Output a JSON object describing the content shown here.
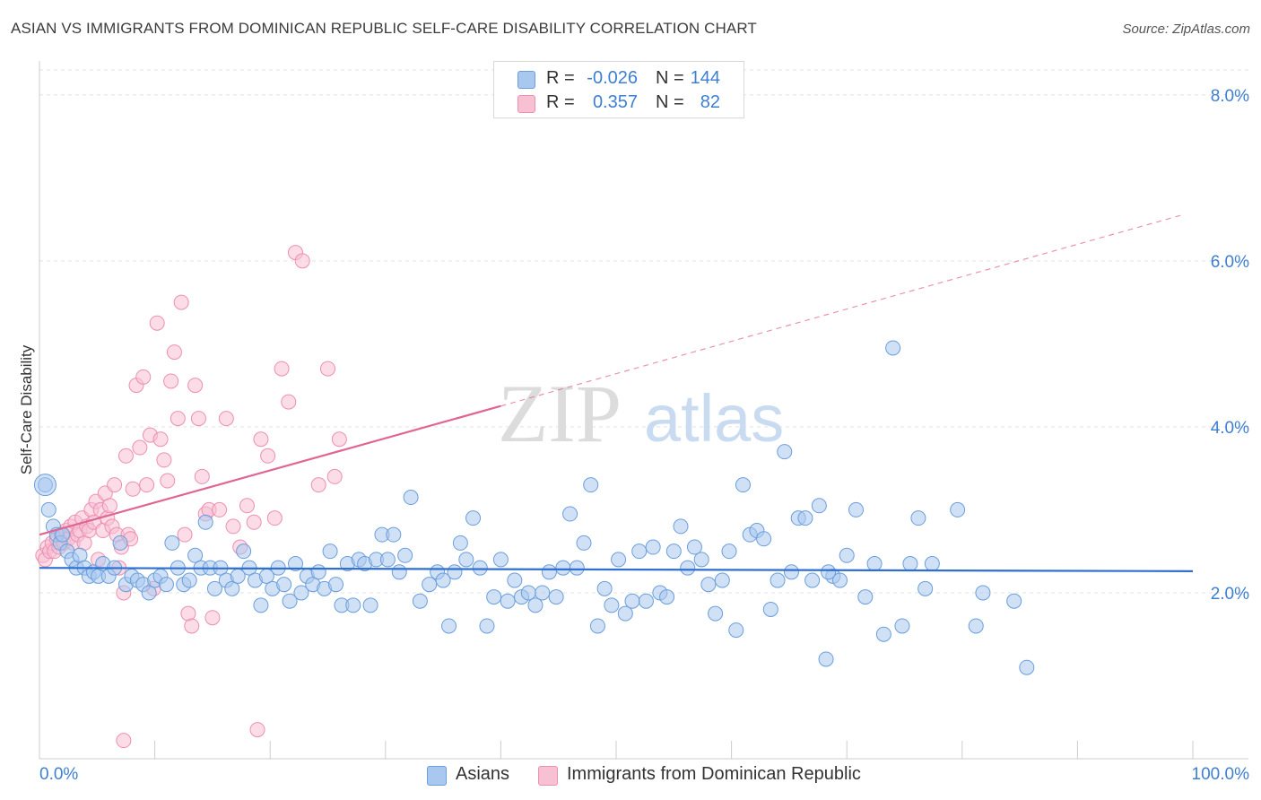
{
  "title": "ASIAN VS IMMIGRANTS FROM DOMINICAN REPUBLIC SELF-CARE DISABILITY CORRELATION CHART",
  "source": "Source: ZipAtlas.com",
  "watermark": {
    "zip": "ZIP",
    "atlas": "atlas"
  },
  "colors": {
    "blue_fill": "#a9c8ef",
    "blue_stroke": "#6b9edb",
    "blue_line": "#2e6fd0",
    "pink_fill": "#f7c0d3",
    "pink_stroke": "#ec8fb0",
    "pink_line": "#e06592",
    "axis_text": "#3d7fd1",
    "grid": "#e2e2e2"
  },
  "legend": {
    "rows": [
      {
        "r_label": "R =",
        "r_value": "-0.026",
        "n_label": "N =",
        "n_value": "144"
      },
      {
        "r_label": "R =",
        "r_value": "0.357",
        "n_label": "N =",
        "n_value": "82"
      }
    ]
  },
  "bottom_legend": {
    "asians": "Asians",
    "dominican": "Immigrants from Dominican Republic"
  },
  "chart_data": {
    "type": "scatter",
    "title": "ASIAN VS IMMIGRANTS FROM DOMINICAN REPUBLIC SELF-CARE DISABILITY CORRELATION CHART",
    "xlabel": "",
    "ylabel": "Self-Care Disability",
    "xlim": [
      0,
      100
    ],
    "ylim": [
      0,
      8.3
    ],
    "x_tick_labels": [
      "0.0%",
      "100.0%"
    ],
    "y_ticks": [
      2,
      4,
      6,
      8
    ],
    "y_tick_labels": [
      "2.0%",
      "4.0%",
      "6.0%",
      "8.0%"
    ],
    "grid": true,
    "legend_position": "top-center",
    "series": [
      {
        "name": "Asians",
        "r": -0.026,
        "n": 144,
        "trend": {
          "x": [
            0,
            100
          ],
          "y": [
            2.3,
            2.26
          ]
        },
        "points": [
          [
            0.5,
            3.3
          ],
          [
            0.8,
            3.0
          ],
          [
            1.2,
            2.8
          ],
          [
            1.5,
            2.7
          ],
          [
            1.8,
            2.6
          ],
          [
            2.0,
            2.7
          ],
          [
            2.4,
            2.5
          ],
          [
            2.8,
            2.4
          ],
          [
            3.2,
            2.3
          ],
          [
            3.5,
            2.45
          ],
          [
            3.9,
            2.3
          ],
          [
            4.3,
            2.2
          ],
          [
            4.7,
            2.25
          ],
          [
            5.1,
            2.2
          ],
          [
            5.5,
            2.35
          ],
          [
            6.0,
            2.2
          ],
          [
            6.5,
            2.3
          ],
          [
            7.0,
            2.6
          ],
          [
            7.5,
            2.1
          ],
          [
            8.0,
            2.2
          ],
          [
            8.5,
            2.15
          ],
          [
            9.0,
            2.1
          ],
          [
            9.5,
            2.0
          ],
          [
            10.0,
            2.15
          ],
          [
            10.5,
            2.2
          ],
          [
            11.0,
            2.1
          ],
          [
            11.5,
            2.6
          ],
          [
            12.0,
            2.3
          ],
          [
            12.5,
            2.1
          ],
          [
            13.0,
            2.15
          ],
          [
            13.5,
            2.45
          ],
          [
            14.0,
            2.3
          ],
          [
            14.4,
            2.85
          ],
          [
            14.8,
            2.3
          ],
          [
            15.2,
            2.05
          ],
          [
            15.7,
            2.3
          ],
          [
            16.2,
            2.15
          ],
          [
            16.7,
            2.05
          ],
          [
            17.2,
            2.2
          ],
          [
            17.7,
            2.5
          ],
          [
            18.2,
            2.3
          ],
          [
            18.7,
            2.15
          ],
          [
            19.2,
            1.85
          ],
          [
            19.7,
            2.2
          ],
          [
            20.2,
            2.05
          ],
          [
            20.7,
            2.3
          ],
          [
            21.2,
            2.1
          ],
          [
            21.7,
            1.9
          ],
          [
            22.2,
            2.35
          ],
          [
            22.7,
            2.0
          ],
          [
            23.2,
            2.2
          ],
          [
            23.7,
            2.1
          ],
          [
            24.2,
            2.25
          ],
          [
            24.7,
            2.05
          ],
          [
            25.2,
            2.5
          ],
          [
            25.7,
            2.1
          ],
          [
            26.2,
            1.85
          ],
          [
            26.7,
            2.35
          ],
          [
            27.2,
            1.85
          ],
          [
            27.7,
            2.4
          ],
          [
            28.2,
            2.35
          ],
          [
            28.7,
            1.85
          ],
          [
            29.2,
            2.4
          ],
          [
            29.7,
            2.7
          ],
          [
            30.2,
            2.4
          ],
          [
            30.7,
            2.7
          ],
          [
            31.2,
            2.25
          ],
          [
            31.7,
            2.45
          ],
          [
            32.2,
            3.15
          ],
          [
            33.0,
            1.9
          ],
          [
            33.8,
            2.1
          ],
          [
            34.5,
            2.25
          ],
          [
            35.0,
            2.15
          ],
          [
            35.5,
            1.6
          ],
          [
            36.0,
            2.25
          ],
          [
            36.5,
            2.6
          ],
          [
            37.0,
            2.4
          ],
          [
            37.6,
            2.9
          ],
          [
            38.2,
            2.3
          ],
          [
            38.8,
            1.6
          ],
          [
            39.4,
            1.95
          ],
          [
            40.0,
            2.4
          ],
          [
            40.6,
            1.9
          ],
          [
            41.2,
            2.15
          ],
          [
            41.8,
            1.95
          ],
          [
            42.4,
            2.0
          ],
          [
            43.0,
            1.85
          ],
          [
            43.6,
            2.0
          ],
          [
            44.2,
            2.25
          ],
          [
            44.8,
            1.95
          ],
          [
            45.4,
            2.3
          ],
          [
            46.0,
            2.95
          ],
          [
            46.6,
            2.3
          ],
          [
            47.2,
            2.6
          ],
          [
            47.8,
            3.3
          ],
          [
            48.4,
            1.6
          ],
          [
            49.0,
            2.05
          ],
          [
            49.6,
            1.85
          ],
          [
            50.2,
            2.4
          ],
          [
            50.8,
            1.75
          ],
          [
            51.4,
            1.9
          ],
          [
            52.0,
            2.5
          ],
          [
            52.6,
            1.9
          ],
          [
            53.2,
            2.55
          ],
          [
            53.8,
            2.0
          ],
          [
            54.4,
            1.95
          ],
          [
            55.0,
            2.5
          ],
          [
            55.6,
            2.8
          ],
          [
            56.2,
            2.3
          ],
          [
            56.8,
            2.55
          ],
          [
            57.4,
            2.4
          ],
          [
            58.0,
            2.1
          ],
          [
            58.6,
            1.75
          ],
          [
            59.2,
            2.15
          ],
          [
            59.8,
            2.5
          ],
          [
            60.4,
            1.55
          ],
          [
            61.0,
            3.3
          ],
          [
            61.6,
            2.7
          ],
          [
            62.2,
            2.75
          ],
          [
            62.8,
            2.65
          ],
          [
            63.4,
            1.8
          ],
          [
            64.0,
            2.15
          ],
          [
            64.6,
            3.7
          ],
          [
            65.2,
            2.25
          ],
          [
            65.8,
            2.9
          ],
          [
            66.4,
            2.9
          ],
          [
            67.0,
            2.15
          ],
          [
            67.6,
            3.05
          ],
          [
            68.2,
            1.2
          ],
          [
            68.8,
            2.2
          ],
          [
            69.4,
            2.15
          ],
          [
            70.0,
            2.45
          ],
          [
            70.8,
            3.0
          ],
          [
            71.6,
            1.95
          ],
          [
            72.4,
            2.35
          ],
          [
            73.2,
            1.5
          ],
          [
            74.0,
            4.95
          ],
          [
            74.8,
            1.6
          ],
          [
            75.5,
            2.35
          ],
          [
            76.2,
            2.9
          ],
          [
            76.8,
            2.05
          ],
          [
            77.4,
            2.35
          ],
          [
            79.6,
            3.0
          ],
          [
            81.2,
            1.6
          ],
          [
            84.5,
            1.9
          ],
          [
            85.6,
            1.1
          ],
          [
            81.8,
            2.0
          ],
          [
            68.4,
            2.25
          ]
        ]
      },
      {
        "name": "Immigrants from Dominican Republic",
        "r": 0.357,
        "n": 82,
        "trend": {
          "x": [
            0,
            40
          ],
          "y": [
            2.7,
            4.25
          ]
        },
        "trend_dashed": {
          "x": [
            40,
            99
          ],
          "y": [
            4.25,
            6.55
          ]
        },
        "points": [
          [
            0.3,
            2.45
          ],
          [
            0.5,
            2.4
          ],
          [
            0.7,
            2.55
          ],
          [
            0.9,
            2.5
          ],
          [
            1.1,
            2.6
          ],
          [
            1.3,
            2.5
          ],
          [
            1.5,
            2.65
          ],
          [
            1.7,
            2.55
          ],
          [
            1.9,
            2.7
          ],
          [
            2.1,
            2.6
          ],
          [
            2.3,
            2.75
          ],
          [
            2.5,
            2.65
          ],
          [
            2.7,
            2.8
          ],
          [
            2.9,
            2.6
          ],
          [
            3.1,
            2.85
          ],
          [
            3.3,
            2.7
          ],
          [
            3.5,
            2.75
          ],
          [
            3.7,
            2.9
          ],
          [
            3.9,
            2.6
          ],
          [
            4.1,
            2.8
          ],
          [
            4.3,
            2.75
          ],
          [
            4.5,
            3.0
          ],
          [
            4.7,
            2.85
          ],
          [
            4.9,
            3.1
          ],
          [
            5.1,
            2.4
          ],
          [
            5.3,
            3.0
          ],
          [
            5.5,
            2.75
          ],
          [
            5.7,
            3.2
          ],
          [
            5.9,
            2.9
          ],
          [
            6.1,
            3.05
          ],
          [
            6.3,
            2.8
          ],
          [
            6.5,
            3.3
          ],
          [
            6.7,
            2.7
          ],
          [
            6.9,
            2.3
          ],
          [
            7.1,
            2.55
          ],
          [
            7.3,
            2.0
          ],
          [
            7.5,
            3.65
          ],
          [
            7.7,
            2.7
          ],
          [
            7.9,
            2.65
          ],
          [
            8.1,
            3.25
          ],
          [
            8.4,
            4.5
          ],
          [
            8.7,
            3.75
          ],
          [
            9.0,
            4.6
          ],
          [
            9.3,
            3.3
          ],
          [
            9.6,
            3.9
          ],
          [
            9.9,
            2.05
          ],
          [
            10.2,
            5.25
          ],
          [
            10.5,
            3.85
          ],
          [
            10.8,
            3.6
          ],
          [
            11.1,
            3.35
          ],
          [
            11.4,
            4.55
          ],
          [
            11.7,
            4.9
          ],
          [
            12.0,
            4.1
          ],
          [
            12.3,
            5.5
          ],
          [
            12.6,
            2.7
          ],
          [
            12.9,
            1.75
          ],
          [
            13.2,
            1.6
          ],
          [
            13.5,
            4.5
          ],
          [
            13.8,
            4.1
          ],
          [
            14.1,
            3.4
          ],
          [
            14.4,
            2.95
          ],
          [
            14.7,
            3.0
          ],
          [
            15.0,
            1.7
          ],
          [
            15.6,
            3.0
          ],
          [
            16.2,
            4.1
          ],
          [
            16.8,
            2.8
          ],
          [
            17.4,
            2.55
          ],
          [
            18.0,
            3.05
          ],
          [
            18.6,
            2.85
          ],
          [
            19.2,
            3.85
          ],
          [
            19.8,
            3.65
          ],
          [
            20.4,
            2.9
          ],
          [
            21.0,
            4.7
          ],
          [
            21.6,
            4.3
          ],
          [
            22.2,
            6.1
          ],
          [
            22.8,
            6.0
          ],
          [
            24.2,
            3.3
          ],
          [
            25.0,
            4.7
          ],
          [
            25.6,
            3.4
          ],
          [
            26.0,
            3.85
          ],
          [
            7.3,
            0.22
          ],
          [
            18.9,
            0.35
          ]
        ]
      }
    ]
  }
}
